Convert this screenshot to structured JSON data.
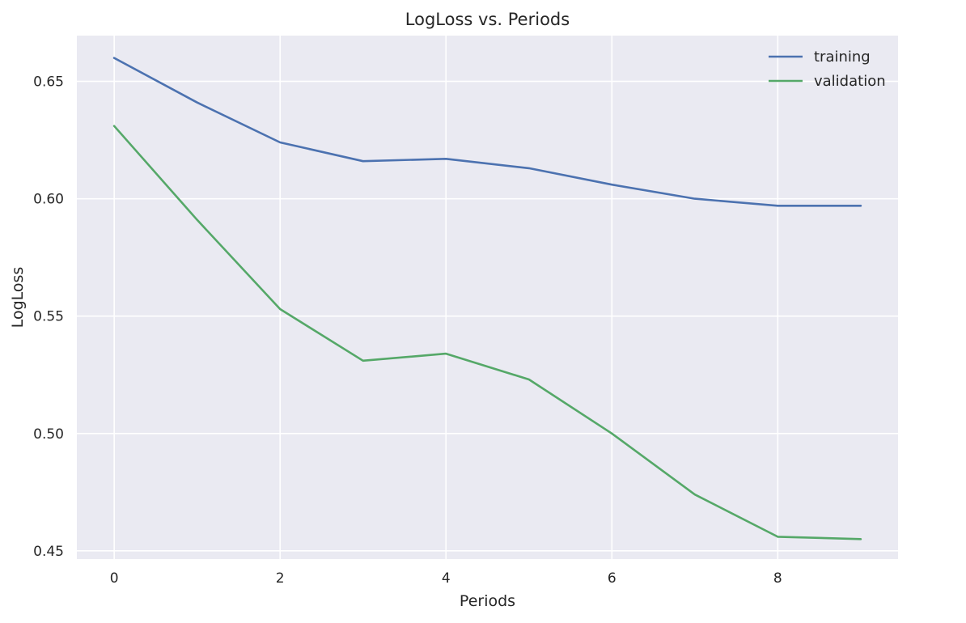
{
  "chart_data": {
    "type": "line",
    "title": "LogLoss vs. Periods",
    "xlabel": "Periods",
    "ylabel": "LogLoss",
    "x": [
      0,
      1,
      2,
      3,
      4,
      5,
      6,
      7,
      8,
      9
    ],
    "series": [
      {
        "name": "training",
        "color": "#4c72b0",
        "values": [
          0.66,
          0.641,
          0.624,
          0.616,
          0.617,
          0.613,
          0.606,
          0.6,
          0.597,
          0.597
        ]
      },
      {
        "name": "validation",
        "color": "#55a868",
        "values": [
          0.631,
          0.591,
          0.553,
          0.531,
          0.534,
          0.523,
          0.5,
          0.474,
          0.456,
          0.455
        ]
      }
    ],
    "xlim": [
      -0.45,
      9.45
    ],
    "ylim": [
      0.4465,
      0.6695
    ],
    "x_ticks": [
      0,
      2,
      4,
      6,
      8
    ],
    "y_ticks": [
      0.45,
      0.5,
      0.55,
      0.6,
      0.65
    ],
    "x_tick_labels": [
      "0",
      "2",
      "4",
      "6",
      "8"
    ],
    "y_tick_labels": [
      "0.45",
      "0.50",
      "0.55",
      "0.60",
      "0.65"
    ],
    "grid": true,
    "legend_position": "top-right",
    "background_color": "#eaeaf2",
    "grid_color": "#ffffff"
  }
}
